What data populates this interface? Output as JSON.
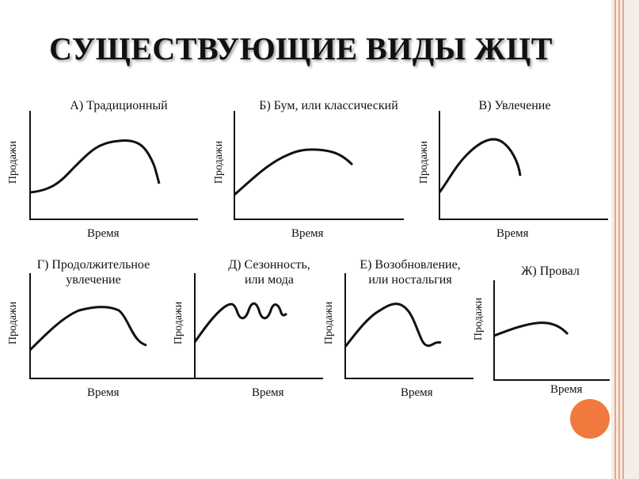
{
  "title": "СУЩЕСТВУЮЩИЕ ВИДЫ ЖЦТ",
  "axis": {
    "ylabel": "Продажи",
    "xlabel": "Время"
  },
  "panels": [
    {
      "id": "a",
      "title": [
        "А) Традиционный"
      ]
    },
    {
      "id": "b",
      "title": [
        "Б) Бум, или классический"
      ]
    },
    {
      "id": "c",
      "title": [
        "В) Увлечение"
      ]
    },
    {
      "id": "d",
      "title": [
        "Г) Продолжительное",
        "увлечение"
      ]
    },
    {
      "id": "e",
      "title": [
        "Д) Сезонность,",
        "или мода"
      ]
    },
    {
      "id": "f",
      "title": [
        "Е) Возобновление,",
        "или ностальгия"
      ]
    },
    {
      "id": "g",
      "title": [
        "Ж) Провал"
      ]
    }
  ],
  "colors": {
    "accent_circle": "#f07a3d",
    "frame_line": "#e7a68b"
  }
}
